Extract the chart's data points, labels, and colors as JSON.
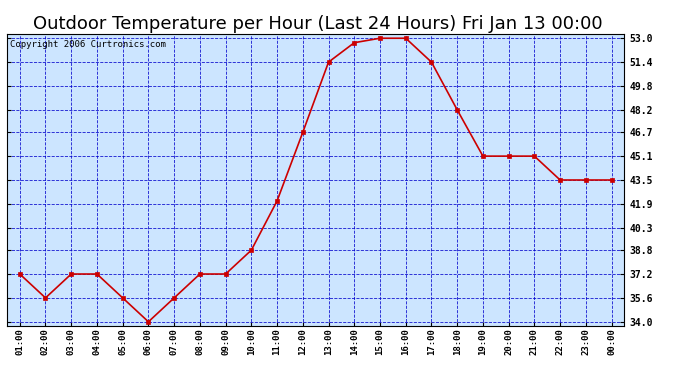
{
  "title": "Outdoor Temperature per Hour (Last 24 Hours) Fri Jan 13 00:00",
  "copyright": "Copyright 2006 Curtronics.com",
  "hours": [
    "01:00",
    "02:00",
    "03:00",
    "04:00",
    "05:00",
    "06:00",
    "07:00",
    "08:00",
    "09:00",
    "10:00",
    "11:00",
    "12:00",
    "13:00",
    "14:00",
    "15:00",
    "16:00",
    "17:00",
    "18:00",
    "19:00",
    "20:00",
    "21:00",
    "22:00",
    "23:00",
    "00:00"
  ],
  "temps": [
    37.2,
    35.6,
    37.2,
    37.2,
    35.6,
    34.0,
    35.6,
    37.2,
    37.2,
    38.8,
    42.1,
    46.7,
    51.4,
    52.7,
    53.0,
    53.0,
    51.4,
    48.2,
    45.1,
    45.1,
    45.1,
    43.5,
    43.5,
    43.5
  ],
  "yticks": [
    34.0,
    35.6,
    37.2,
    38.8,
    40.3,
    41.9,
    43.5,
    45.1,
    46.7,
    48.2,
    49.8,
    51.4,
    53.0
  ],
  "ymin": 33.7,
  "ymax": 53.3,
  "line_color": "#cc0000",
  "marker_color": "#cc0000",
  "plot_bg_color": "#cce5ff",
  "outer_bg_color": "#ffffff",
  "grid_color": "#0000cc",
  "title_fontsize": 13,
  "copyright_fontsize": 6.5
}
